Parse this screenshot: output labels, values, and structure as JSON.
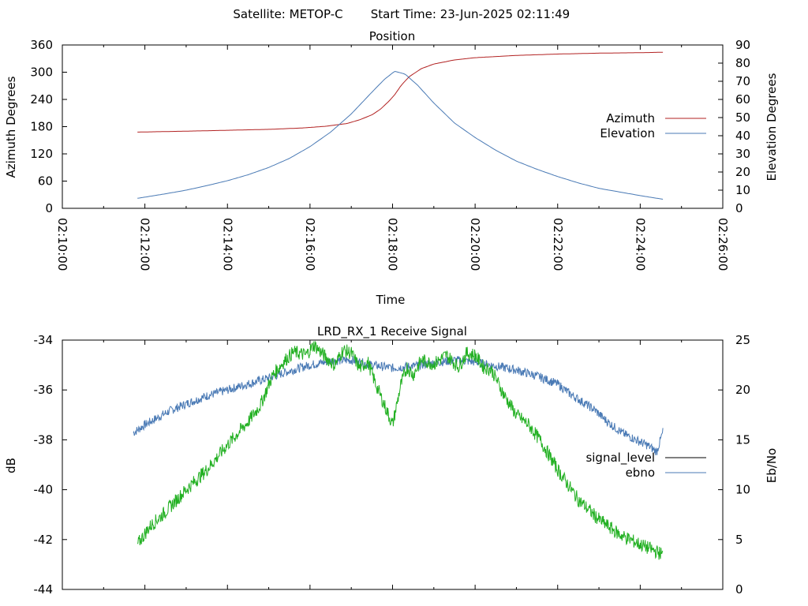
{
  "header": {
    "satellite": "Satellite: METOP-C",
    "start_time": "Start Time: 23-Jun-2025 02:11:49"
  },
  "chart_data": [
    {
      "type": "line",
      "title": "Position",
      "xlabel": "Time",
      "ylabel": "Azimuth Degrees",
      "y2label": "Elevation Degrees",
      "x_tick_labels": [
        "02:10:00",
        "02:12:00",
        "02:14:00",
        "02:16:00",
        "02:18:00",
        "02:20:00",
        "02:22:00",
        "02:24:00",
        "02:26:00"
      ],
      "xlim_minutes": [
        0,
        16
      ],
      "y_ticks": [
        0,
        60,
        120,
        180,
        240,
        300,
        360
      ],
      "ylim": [
        0,
        360
      ],
      "y2_ticks": [
        0,
        10,
        20,
        30,
        40,
        50,
        60,
        70,
        80,
        90
      ],
      "y2lim": [
        0,
        90
      ],
      "legend": "right",
      "grid": false,
      "series": [
        {
          "name": "Azimuth",
          "axis": "left",
          "color": "#b22222",
          "x": [
            1.82,
            3,
            4,
            5,
            5.8,
            6.4,
            6.9,
            7.2,
            7.5,
            7.7,
            7.9,
            8.05,
            8.2,
            8.4,
            8.7,
            9,
            9.5,
            10,
            11,
            12,
            13,
            14,
            14.55
          ],
          "y": [
            168,
            170,
            172,
            174,
            177,
            181,
            187,
            195,
            206,
            218,
            235,
            250,
            270,
            290,
            308,
            318,
            327,
            332,
            337,
            340,
            342,
            343,
            344
          ]
        },
        {
          "name": "Elevation",
          "axis": "right",
          "color": "#4a7ab5",
          "x": [
            1.82,
            2.5,
            3,
            3.5,
            4,
            4.5,
            5,
            5.5,
            6,
            6.5,
            7,
            7.5,
            7.8,
            8.05,
            8.3,
            8.6,
            9,
            9.5,
            10,
            10.5,
            11,
            11.5,
            12,
            12.5,
            13,
            13.5,
            14,
            14.55
          ],
          "y": [
            5.5,
            8,
            10,
            12.5,
            15.2,
            18.5,
            22.5,
            27.5,
            34,
            42,
            52,
            64,
            71,
            75.5,
            74,
            68,
            58,
            47,
            39,
            32,
            26,
            21.5,
            17.5,
            14,
            11,
            9,
            7,
            5
          ]
        }
      ]
    },
    {
      "type": "line",
      "title": "LRD_RX_1 Receive Signal",
      "xlabel": "",
      "ylabel": "dB",
      "y2label": "Eb/No",
      "xlim_minutes": [
        0,
        16
      ],
      "y_ticks": [
        -44,
        -42,
        -40,
        -38,
        -36,
        -34
      ],
      "ylim": [
        -44,
        -34
      ],
      "y2_ticks": [
        0,
        5,
        10,
        15,
        20,
        25
      ],
      "y2lim": [
        0,
        25
      ],
      "legend": "right",
      "grid": false,
      "series": [
        {
          "name": "signal_level",
          "axis": "left",
          "color": "#000000",
          "x": [],
          "y": []
        },
        {
          "name": "ebno",
          "axis": "right",
          "color": "#4a7ab5",
          "x": [
            1.72,
            2.0,
            2.3,
            2.6,
            3.0,
            3.5,
            4.0,
            4.5,
            5.0,
            5.5,
            6.0,
            6.5,
            7.0,
            7.5,
            8.0,
            8.5,
            9.0,
            9.5,
            10.0,
            10.5,
            11.0,
            11.5,
            12.0,
            12.3,
            12.6,
            12.9,
            13.1,
            13.3,
            13.6,
            13.9,
            14.2,
            14.4,
            14.55
          ],
          "y": [
            15.7,
            16.5,
            17.2,
            17.9,
            18.6,
            19.4,
            20.0,
            20.6,
            21.2,
            21.9,
            22.5,
            22.9,
            23.0,
            22.5,
            22.2,
            22.4,
            22.7,
            23.0,
            22.8,
            22.4,
            22.0,
            21.4,
            20.6,
            19.6,
            18.8,
            18.0,
            17.2,
            16.5,
            15.6,
            15.0,
            14.4,
            13.8,
            15.8
          ]
        },
        {
          "name": "",
          "axis": "right",
          "color": "#22b022",
          "x": [
            1.82,
            2.1,
            2.5,
            3.0,
            3.5,
            4.0,
            4.5,
            4.8,
            5.1,
            5.4,
            5.6,
            5.9,
            6.1,
            6.4,
            6.6,
            6.8,
            7.0,
            7.2,
            7.4,
            7.6,
            7.8,
            8.0,
            8.2,
            8.35,
            8.5,
            8.7,
            9.0,
            9.3,
            9.6,
            9.8,
            10.0,
            10.2,
            10.4,
            10.7,
            11.0,
            11.3,
            11.6,
            12.0,
            12.5,
            13.0,
            13.5,
            14.0,
            14.55
          ],
          "y": [
            4.5,
            6.2,
            7.8,
            10.0,
            12.0,
            14.5,
            16.8,
            18.5,
            21.5,
            23.0,
            23.8,
            23.5,
            24.5,
            23.2,
            22.5,
            24.0,
            23.7,
            22.2,
            22.8,
            20.5,
            18.5,
            16.5,
            20.5,
            22.3,
            21.5,
            23.0,
            22.6,
            23.5,
            22.3,
            23.7,
            23.5,
            22.3,
            22.0,
            19.5,
            17.5,
            16.5,
            14.8,
            12.0,
            9.0,
            7.0,
            5.5,
            4.5,
            3.5
          ]
        }
      ]
    }
  ]
}
